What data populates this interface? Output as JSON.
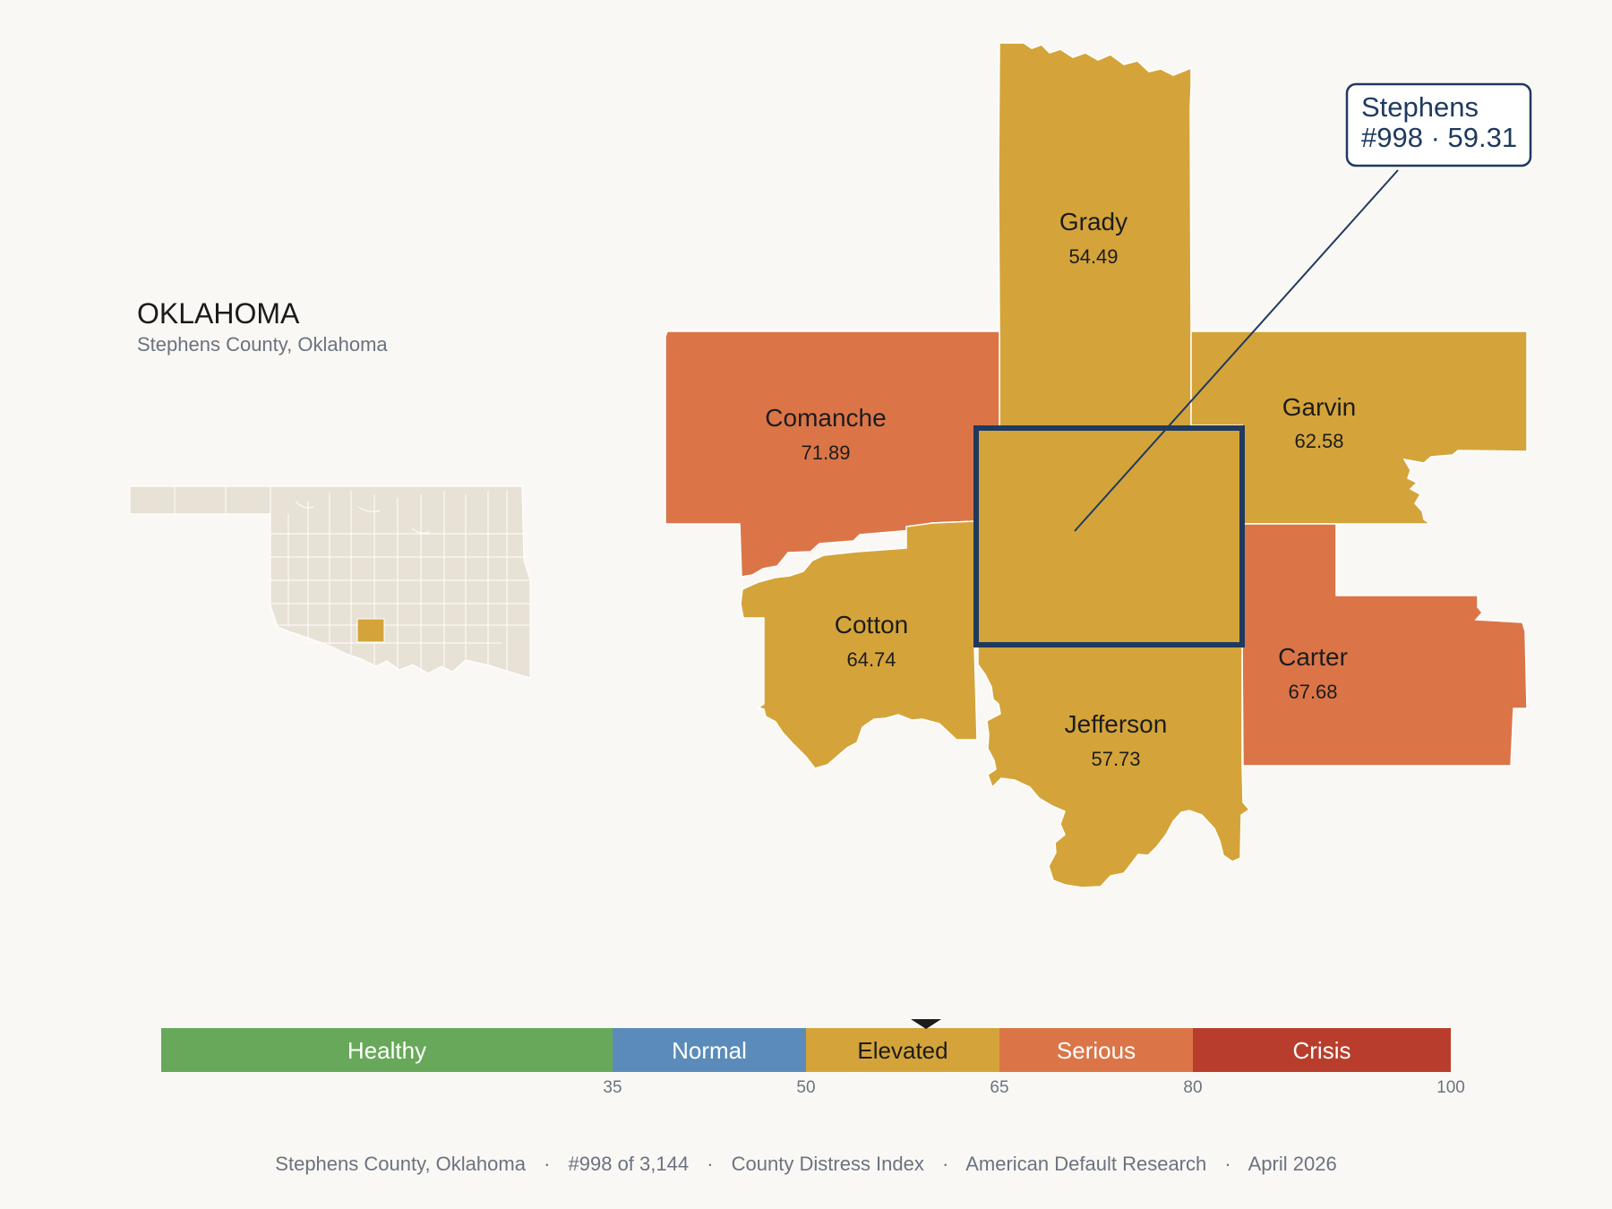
{
  "header": {
    "state": "OKLAHOMA",
    "subtitle": "Stephens County, Oklahoma"
  },
  "colors": {
    "background": "#faf8f4",
    "elevated": "#d4a43a",
    "serious": "#db7548",
    "focus_outline": "#1f3a5f",
    "inset_fill": "#e8e1d6"
  },
  "counties": [
    {
      "name": "Grady",
      "score": "54.49",
      "band": "elevated"
    },
    {
      "name": "Comanche",
      "score": "71.89",
      "band": "serious"
    },
    {
      "name": "Garvin",
      "score": "62.58",
      "band": "elevated"
    },
    {
      "name": "Cotton",
      "score": "64.74",
      "band": "elevated"
    },
    {
      "name": "Carter",
      "score": "67.68",
      "band": "serious"
    },
    {
      "name": "Jefferson",
      "score": "57.73",
      "band": "elevated"
    },
    {
      "name": "Stephens",
      "score": "59.31",
      "band": "elevated",
      "focus": true
    }
  ],
  "callout": {
    "name": "Stephens",
    "detail": "#998 · 59.31"
  },
  "scale": {
    "min": 0,
    "max": 100,
    "marker_value": 59.31,
    "bands": [
      {
        "label": "Healthy",
        "from": 0,
        "to": 35,
        "color": "#68a85a",
        "text_color": "#ffffff"
      },
      {
        "label": "Normal",
        "from": 35,
        "to": 50,
        "color": "#5b8bba",
        "text_color": "#ffffff"
      },
      {
        "label": "Elevated",
        "from": 50,
        "to": 65,
        "color": "#d4a43a",
        "text_color": "#1c1c1c"
      },
      {
        "label": "Serious",
        "from": 65,
        "to": 80,
        "color": "#db7548",
        "text_color": "#ffffff"
      },
      {
        "label": "Crisis",
        "from": 80,
        "to": 100,
        "color": "#b93d2c",
        "text_color": "#ffffff"
      }
    ],
    "ticks": [
      "35",
      "50",
      "65",
      "80",
      "100"
    ]
  },
  "footer": {
    "county": "Stephens County, Oklahoma",
    "rank": "#998 of 3,144",
    "index": "County Distress Index",
    "source": "American Default Research",
    "date": "April 2026",
    "separator": "·"
  }
}
